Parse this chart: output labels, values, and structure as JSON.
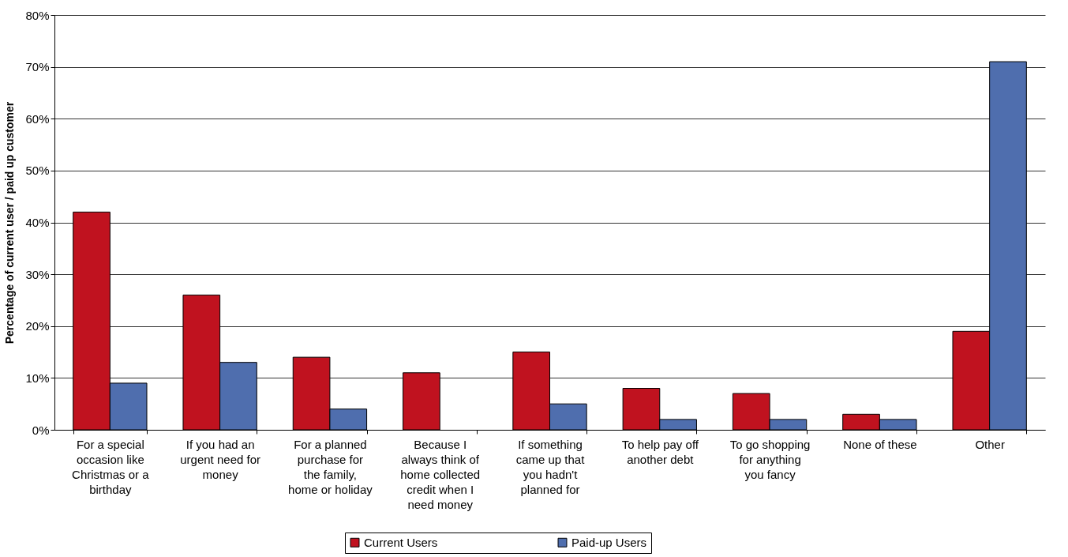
{
  "chart_data": {
    "type": "bar",
    "ylabel": "Percentage of current user / paid up customer",
    "categories": [
      "For a special occasion like Christmas or a birthday",
      "If you had an urgent need for money",
      "For a planned purchase for the family, home or holiday",
      "Because I always think of home collected credit when I need money",
      "If something came up that you hadn't planned for",
      "To help pay off another debt",
      "To go shopping for anything you fancy",
      "None of these",
      "Other"
    ],
    "series": [
      {
        "name": "Current Users",
        "color": "#c0121f",
        "values": [
          42,
          26,
          14,
          11,
          15,
          8,
          7,
          3,
          19
        ]
      },
      {
        "name": "Paid-up Users",
        "color": "#4f6eae",
        "values": [
          9,
          13,
          4,
          null,
          5,
          2,
          2,
          2,
          71
        ]
      }
    ],
    "ylim": [
      0,
      80
    ],
    "yticks": [
      {
        "value": 0,
        "label": "0%"
      },
      {
        "value": 10,
        "label": "10%"
      },
      {
        "value": 20,
        "label": "20%"
      },
      {
        "value": 30,
        "label": "30%"
      },
      {
        "value": 40,
        "label": "40%"
      },
      {
        "value": 50,
        "label": "50%"
      },
      {
        "value": 60,
        "label": "60%"
      },
      {
        "value": 70,
        "label": "70%"
      },
      {
        "value": 80,
        "label": "80%"
      }
    ],
    "grid": "y",
    "legend": "bottom"
  }
}
